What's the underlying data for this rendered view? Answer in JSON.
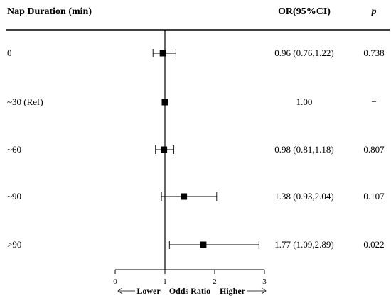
{
  "header": {
    "col_label": "Nap Duration (min)",
    "col_or": "OR(95%CI)",
    "col_p": "p"
  },
  "chart_data": {
    "type": "forest",
    "reference_line": 1,
    "xlim": [
      0,
      3
    ],
    "xticks": [
      "0",
      "1",
      "2",
      "3"
    ],
    "xlabel": "Odds Ratio",
    "direction_labels": {
      "left": "Lower",
      "right": "Higher"
    },
    "rows": [
      {
        "label": "0",
        "or": 0.96,
        "lo": 0.76,
        "hi": 1.22,
        "ci_text": "0.96 (0.76,1.22)",
        "p": "0.738"
      },
      {
        "label": "~30 (Ref)",
        "or": 1.0,
        "lo": null,
        "hi": null,
        "ci_text": "1.00",
        "p": "−"
      },
      {
        "label": "~60",
        "or": 0.98,
        "lo": 0.81,
        "hi": 1.18,
        "ci_text": "0.98 (0.81,1.18)",
        "p": "0.807"
      },
      {
        "label": "~90",
        "or": 1.38,
        "lo": 0.93,
        "hi": 2.04,
        "ci_text": "1.38 (0.93,2.04)",
        "p": "0.107"
      },
      {
        "label": ">90",
        "or": 1.77,
        "lo": 1.09,
        "hi": 2.89,
        "ci_text": "1.77 (1.09,2.89)",
        "p": "0.022"
      }
    ]
  }
}
